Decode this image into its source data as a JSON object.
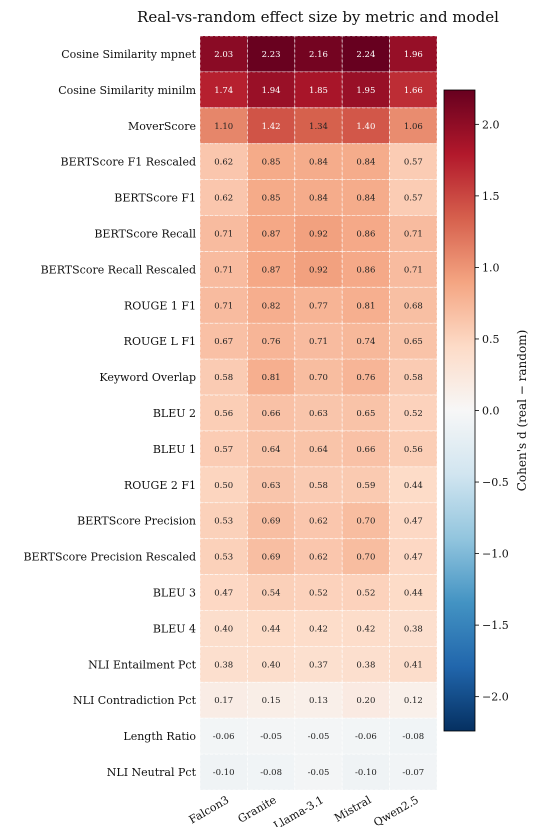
{
  "chart_data": {
    "type": "heatmap",
    "title": "Real-vs-random effect size by metric and model",
    "columns": [
      "Falcon3",
      "Granite",
      "Llama-3.1",
      "Mistral",
      "Qwen2.5"
    ],
    "rows": [
      "Cosine Similarity mpnet",
      "Cosine Similarity minilm",
      "MoverScore",
      "BERTScore F1 Rescaled",
      "BERTScore F1",
      "BERTScore Recall",
      "BERTScore Recall Rescaled",
      "ROUGE 1 F1",
      "ROUGE L F1",
      "Keyword Overlap",
      "BLEU 2",
      "BLEU 1",
      "ROUGE 2 F1",
      "BERTScore Precision",
      "BERTScore Precision Rescaled",
      "BLEU 3",
      "BLEU 4",
      "NLI Entailment Pct",
      "NLI Contradiction Pct",
      "Length Ratio",
      "NLI Neutral Pct"
    ],
    "values": [
      [
        2.03,
        2.23,
        2.16,
        2.24,
        1.96
      ],
      [
        1.74,
        1.94,
        1.85,
        1.95,
        1.66
      ],
      [
        1.1,
        1.42,
        1.34,
        1.4,
        1.06
      ],
      [
        0.62,
        0.85,
        0.84,
        0.84,
        0.57
      ],
      [
        0.62,
        0.85,
        0.84,
        0.84,
        0.57
      ],
      [
        0.71,
        0.87,
        0.92,
        0.86,
        0.71
      ],
      [
        0.71,
        0.87,
        0.92,
        0.86,
        0.71
      ],
      [
        0.71,
        0.82,
        0.77,
        0.81,
        0.68
      ],
      [
        0.67,
        0.76,
        0.71,
        0.74,
        0.65
      ],
      [
        0.58,
        0.81,
        0.7,
        0.76,
        0.58
      ],
      [
        0.56,
        0.66,
        0.63,
        0.65,
        0.52
      ],
      [
        0.57,
        0.64,
        0.64,
        0.66,
        0.56
      ],
      [
        0.5,
        0.63,
        0.58,
        0.59,
        0.44
      ],
      [
        0.53,
        0.69,
        0.62,
        0.7,
        0.47
      ],
      [
        0.53,
        0.69,
        0.62,
        0.7,
        0.47
      ],
      [
        0.47,
        0.54,
        0.52,
        0.52,
        0.44
      ],
      [
        0.4,
        0.44,
        0.42,
        0.42,
        0.38
      ],
      [
        0.38,
        0.4,
        0.37,
        0.38,
        0.41
      ],
      [
        0.17,
        0.15,
        0.13,
        0.2,
        0.12
      ],
      [
        -0.06,
        -0.05,
        -0.05,
        -0.06,
        -0.08
      ],
      [
        -0.1,
        -0.08,
        -0.05,
        -0.1,
        -0.07
      ]
    ],
    "colorbar": {
      "label": "Cohen's d (real − random)",
      "range": [
        -2.24,
        2.24
      ],
      "ticks": [
        2.0,
        1.5,
        1.0,
        0.5,
        0.0,
        -0.5,
        -1.0,
        -1.5,
        -2.0
      ],
      "tick_labels": [
        "2.0",
        "1.5",
        "1.0",
        "0.5",
        "0.0",
        "−0.5",
        "−1.0",
        "−1.5",
        "−2.0"
      ],
      "colormap": "RdBu_r",
      "colors": [
        "#053061",
        "#2166ac",
        "#4393c3",
        "#92c5de",
        "#d1e5f0",
        "#f7f7f7",
        "#fddbc7",
        "#f4a582",
        "#d6604d",
        "#b2182b",
        "#67001f"
      ]
    },
    "grid": true,
    "cell_grid_style": "dashed white"
  }
}
